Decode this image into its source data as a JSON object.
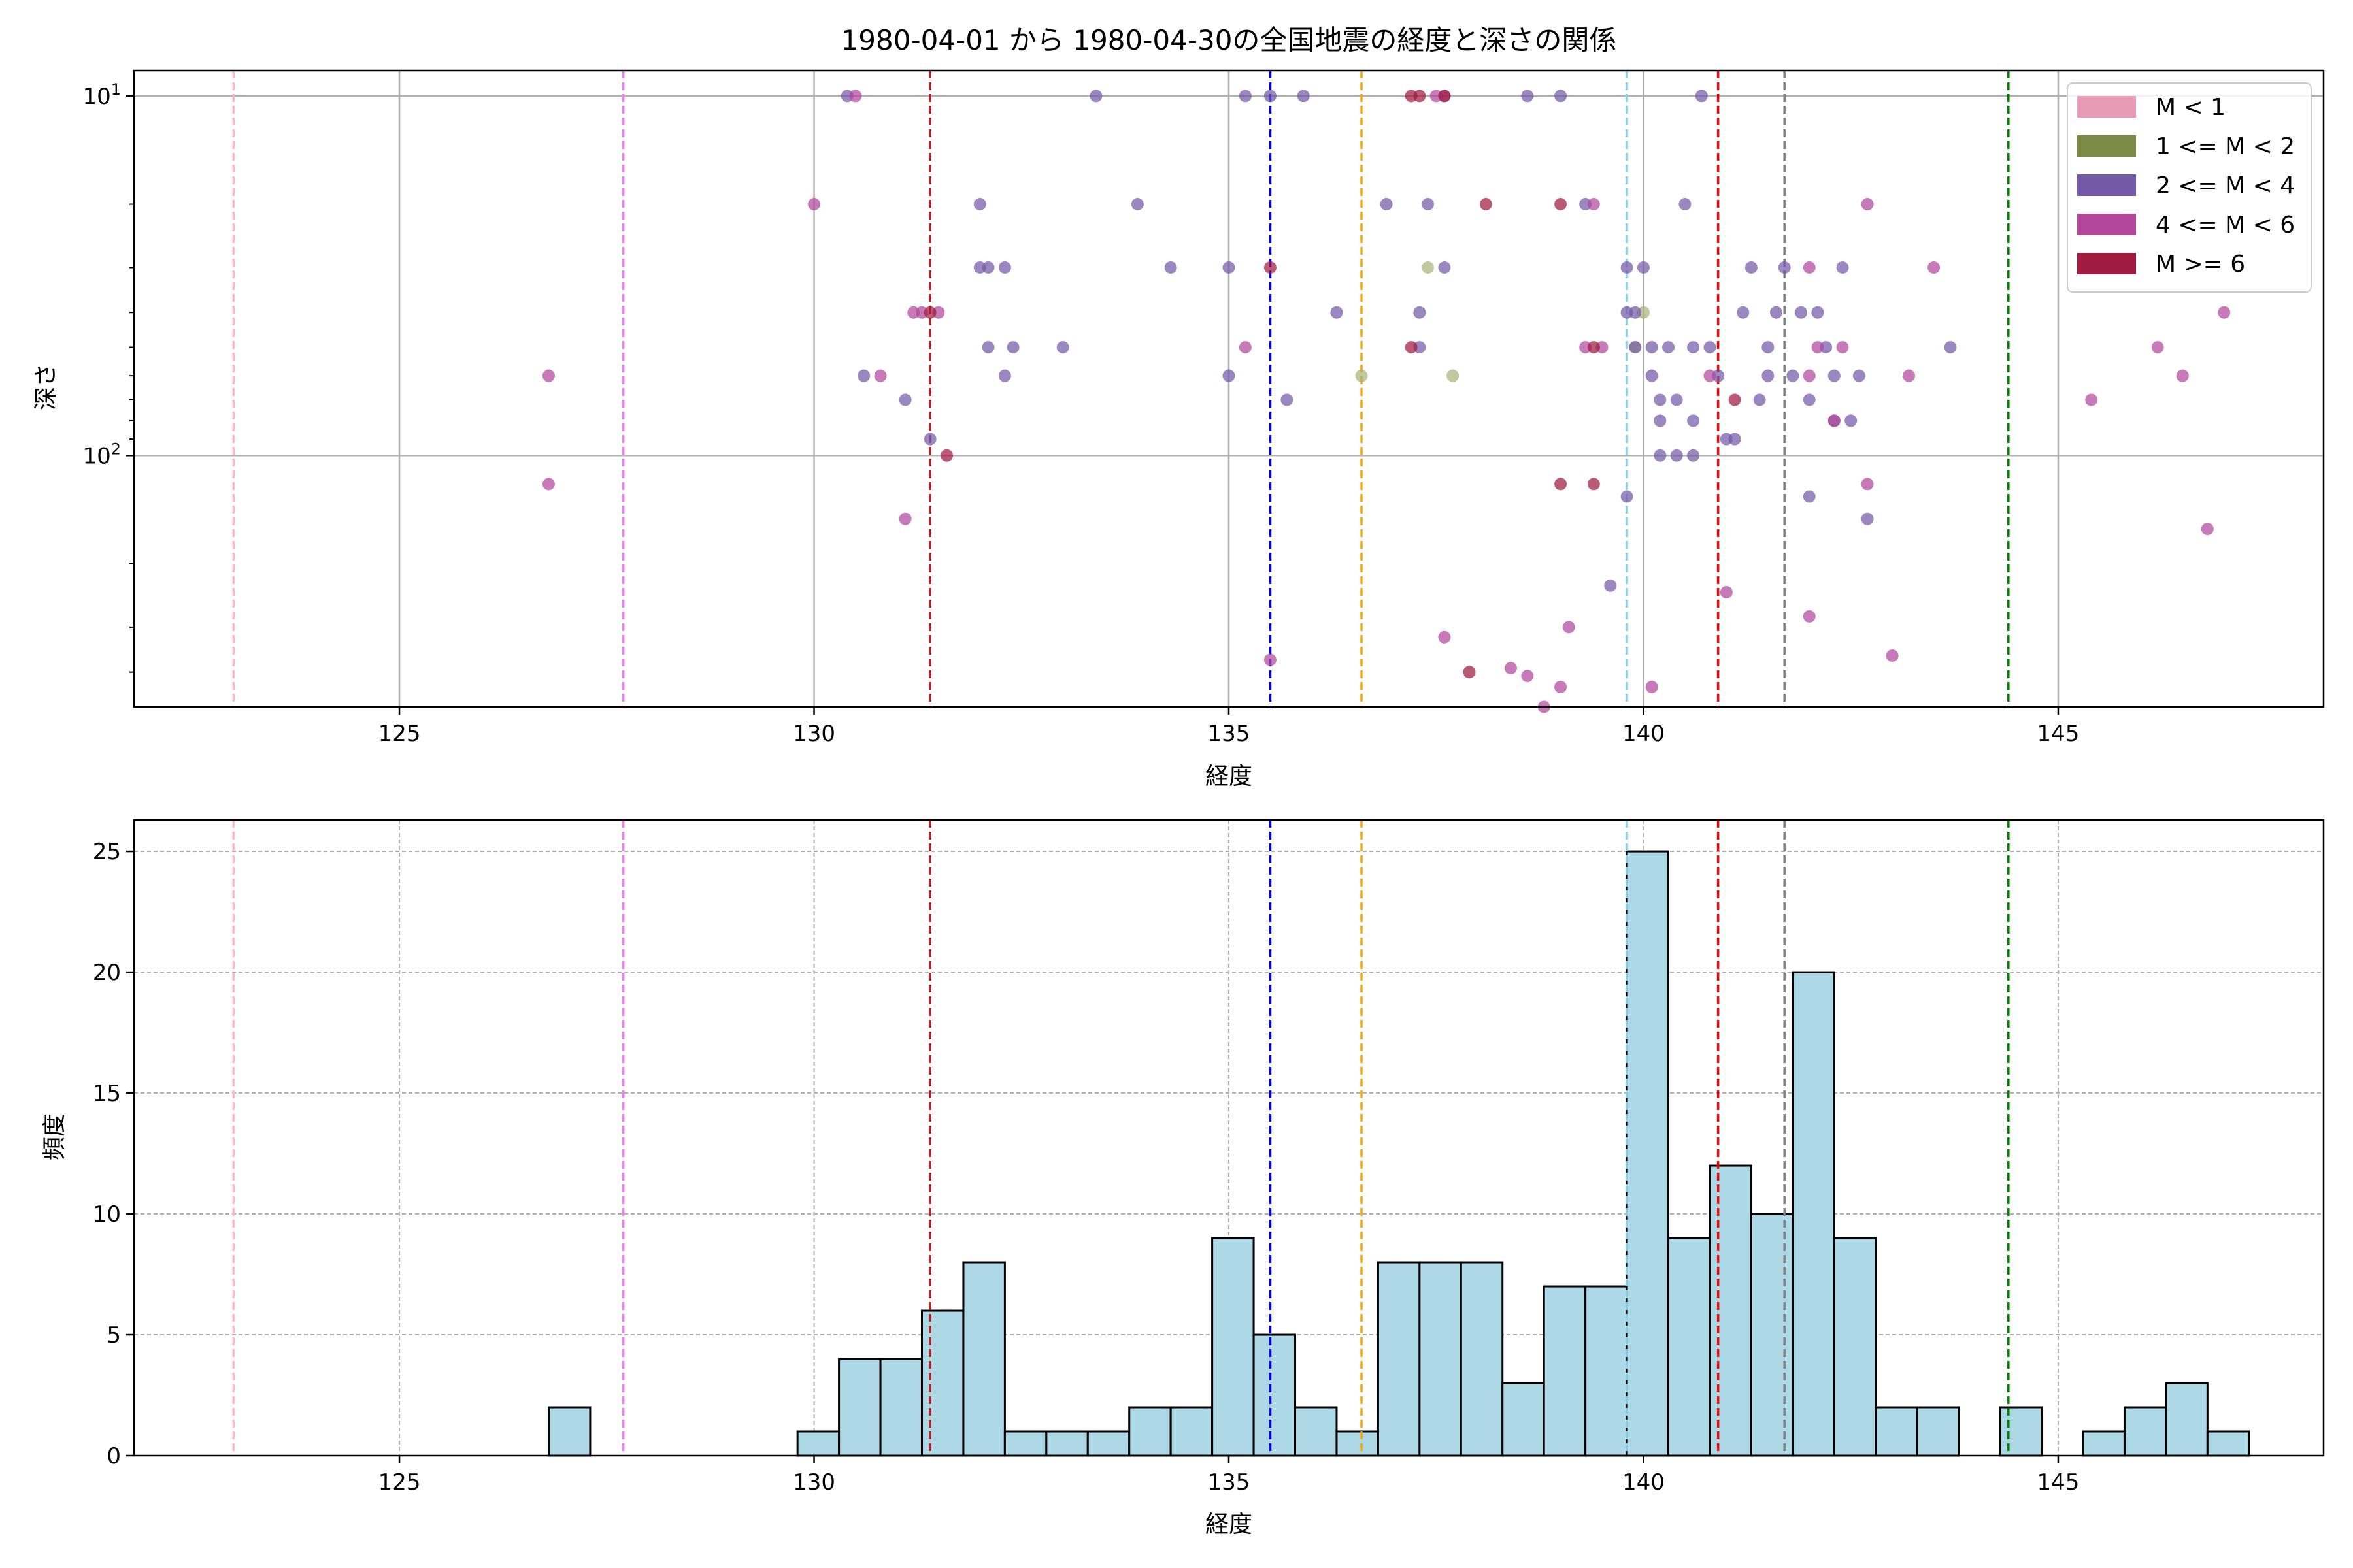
{
  "title": "1980-04-01 から 1980-04-30の全国地震の経度と深さの関係",
  "chart_data": [
    {
      "type": "scatter",
      "xlabel": "経度",
      "ylabel": "深さ",
      "xlim": [
        121.8,
        148.2
      ],
      "ylim": [
        500,
        8.5
      ],
      "yscale": "log (inverted)",
      "grid": true,
      "x_ticks": [
        125,
        130,
        135,
        140,
        145
      ],
      "y_ticks": [
        {
          "value": 10,
          "label": "10^1"
        },
        {
          "value": 100,
          "label": "10^2"
        }
      ],
      "legend": {
        "placement": "top-right",
        "entries": [
          {
            "label": "M < 1",
            "color": "#e69ab3"
          },
          {
            "label": "1 <= M < 2",
            "color": "#7b8a44"
          },
          {
            "label": "2 <= M < 4",
            "color": "#7359a6"
          },
          {
            "label": "4 <= M < 6",
            "color": "#b2479c"
          },
          {
            "label": "M >= 6",
            "color": "#a01b3f"
          }
        ]
      },
      "vlines": [
        {
          "x": 123.0,
          "color": "#ffb6c1"
        },
        {
          "x": 127.7,
          "color": "#ee82ee"
        },
        {
          "x": 131.4,
          "color": "#b22222"
        },
        {
          "x": 135.5,
          "color": "#0000ee"
        },
        {
          "x": 136.6,
          "color": "#ffa500"
        },
        {
          "x": 139.8,
          "color": "#87ceeb"
        },
        {
          "x": 140.9,
          "color": "#ff0000"
        },
        {
          "x": 141.7,
          "color": "#808080"
        },
        {
          "x": 144.4,
          "color": "#008000"
        }
      ],
      "series": [
        {
          "name": "1 <= M < 2",
          "color": "#aab47a",
          "points": [
            [
              136.6,
              60
            ],
            [
              137.4,
              30
            ],
            [
              137.7,
              60
            ],
            [
              140.0,
              40
            ],
            [
              139.9,
              50
            ]
          ]
        },
        {
          "name": "2 <= M < 4",
          "color": "#7359a6",
          "points": [
            [
              130.4,
              10
            ],
            [
              133.4,
              10
            ],
            [
              135.2,
              10
            ],
            [
              135.5,
              10
            ],
            [
              135.9,
              10
            ],
            [
              138.6,
              10
            ],
            [
              139.0,
              10
            ],
            [
              140.7,
              10
            ],
            [
              136.9,
              20
            ],
            [
              137.4,
              20
            ],
            [
              139.3,
              20
            ],
            [
              140.5,
              20
            ],
            [
              133.9,
              20
            ],
            [
              132.0,
              20
            ],
            [
              132.0,
              30
            ],
            [
              132.1,
              30
            ],
            [
              132.3,
              30
            ],
            [
              134.3,
              30
            ],
            [
              135.0,
              30
            ],
            [
              137.6,
              30
            ],
            [
              139.8,
              30
            ],
            [
              140.0,
              30
            ],
            [
              141.3,
              30
            ],
            [
              141.7,
              30
            ],
            [
              142.4,
              30
            ],
            [
              136.3,
              40
            ],
            [
              137.3,
              40
            ],
            [
              139.8,
              40
            ],
            [
              139.9,
              40
            ],
            [
              141.2,
              40
            ],
            [
              141.6,
              40
            ],
            [
              142.1,
              40
            ],
            [
              141.9,
              40
            ],
            [
              132.1,
              50
            ],
            [
              132.4,
              50
            ],
            [
              133.0,
              50
            ],
            [
              137.3,
              50
            ],
            [
              139.9,
              50
            ],
            [
              140.1,
              50
            ],
            [
              140.3,
              50
            ],
            [
              140.6,
              50
            ],
            [
              140.8,
              50
            ],
            [
              141.5,
              50
            ],
            [
              142.2,
              50
            ],
            [
              143.7,
              50
            ],
            [
              130.6,
              60
            ],
            [
              132.3,
              60
            ],
            [
              135.0,
              60
            ],
            [
              140.1,
              60
            ],
            [
              140.9,
              60
            ],
            [
              141.5,
              60
            ],
            [
              141.8,
              60
            ],
            [
              142.3,
              60
            ],
            [
              142.6,
              60
            ],
            [
              131.1,
              70
            ],
            [
              135.7,
              70
            ],
            [
              140.2,
              70
            ],
            [
              140.4,
              70
            ],
            [
              141.4,
              70
            ],
            [
              142.0,
              70
            ],
            [
              140.2,
              80
            ],
            [
              140.6,
              80
            ],
            [
              142.3,
              80
            ],
            [
              142.5,
              80
            ],
            [
              131.4,
              90
            ],
            [
              141.0,
              90
            ],
            [
              141.1,
              90
            ],
            [
              140.2,
              100
            ],
            [
              140.4,
              100
            ],
            [
              140.6,
              100
            ],
            [
              139.8,
              130
            ],
            [
              142.0,
              130
            ],
            [
              142.7,
              150
            ],
            [
              139.6,
              230
            ]
          ]
        },
        {
          "name": "4 <= M < 6",
          "color": "#b2479c",
          "points": [
            [
              130.5,
              10
            ],
            [
              137.5,
              10
            ],
            [
              137.6,
              10
            ],
            [
              130.0,
              20
            ],
            [
              139.4,
              20
            ],
            [
              142.7,
              20
            ],
            [
              142.0,
              30
            ],
            [
              143.5,
              30
            ],
            [
              131.2,
              40
            ],
            [
              131.3,
              40
            ],
            [
              131.5,
              40
            ],
            [
              135.2,
              50
            ],
            [
              139.3,
              50
            ],
            [
              139.5,
              50
            ],
            [
              142.1,
              50
            ],
            [
              142.4,
              50
            ],
            [
              146.2,
              50
            ],
            [
              147.0,
              40
            ],
            [
              126.8,
              60
            ],
            [
              130.8,
              60
            ],
            [
              140.8,
              60
            ],
            [
              142.0,
              60
            ],
            [
              143.2,
              60
            ],
            [
              146.5,
              60
            ],
            [
              145.4,
              70
            ],
            [
              142.3,
              80
            ],
            [
              126.8,
              120
            ],
            [
              142.7,
              120
            ],
            [
              131.1,
              150
            ],
            [
              146.8,
              160
            ],
            [
              141.0,
              240
            ],
            [
              142.0,
              280
            ],
            [
              139.1,
              300
            ],
            [
              137.6,
              320
            ],
            [
              135.5,
              370
            ],
            [
              138.4,
              390
            ],
            [
              138.6,
              410
            ],
            [
              140.1,
              440
            ],
            [
              139.0,
              440
            ],
            [
              143.0,
              360
            ],
            [
              138.8,
              520
            ]
          ]
        },
        {
          "name": "M >= 6",
          "color": "#a01b3f",
          "points": [
            [
              137.2,
              10
            ],
            [
              137.3,
              10
            ],
            [
              137.6,
              10
            ],
            [
              138.1,
              20
            ],
            [
              139.0,
              20
            ],
            [
              135.5,
              30
            ],
            [
              131.4,
              40
            ],
            [
              137.2,
              50
            ],
            [
              139.4,
              50
            ],
            [
              141.1,
              70
            ],
            [
              131.6,
              100
            ],
            [
              139.0,
              120
            ],
            [
              139.4,
              120
            ],
            [
              137.9,
              400
            ]
          ]
        }
      ]
    },
    {
      "type": "histogram",
      "xlabel": "経度",
      "ylabel": "頻度",
      "xlim": [
        121.8,
        148.2
      ],
      "ylim": [
        0,
        26.3
      ],
      "grid": true,
      "bar_color": "#add8e6",
      "x_ticks": [
        125,
        130,
        135,
        140,
        145
      ],
      "y_ticks": [
        0,
        5,
        10,
        15,
        20,
        25
      ],
      "bin_start": 126.8,
      "bin_width": 0.5,
      "counts": [
        2,
        0,
        0,
        0,
        0,
        0,
        1,
        4,
        4,
        6,
        8,
        1,
        1,
        1,
        2,
        2,
        9,
        5,
        2,
        1,
        8,
        8,
        8,
        3,
        7,
        7,
        25,
        9,
        12,
        10,
        20,
        9,
        2,
        2,
        0,
        2,
        0,
        1,
        2,
        3,
        1
      ],
      "vlines": [
        {
          "x": 123.0,
          "color": "#ffb6c1"
        },
        {
          "x": 127.7,
          "color": "#ee82ee"
        },
        {
          "x": 131.4,
          "color": "#b22222"
        },
        {
          "x": 135.5,
          "color": "#0000ee"
        },
        {
          "x": 136.6,
          "color": "#ffa500"
        },
        {
          "x": 139.8,
          "color": "#87ceeb"
        },
        {
          "x": 140.9,
          "color": "#ff0000"
        },
        {
          "x": 141.7,
          "color": "#808080"
        },
        {
          "x": 144.4,
          "color": "#008000"
        }
      ]
    }
  ]
}
